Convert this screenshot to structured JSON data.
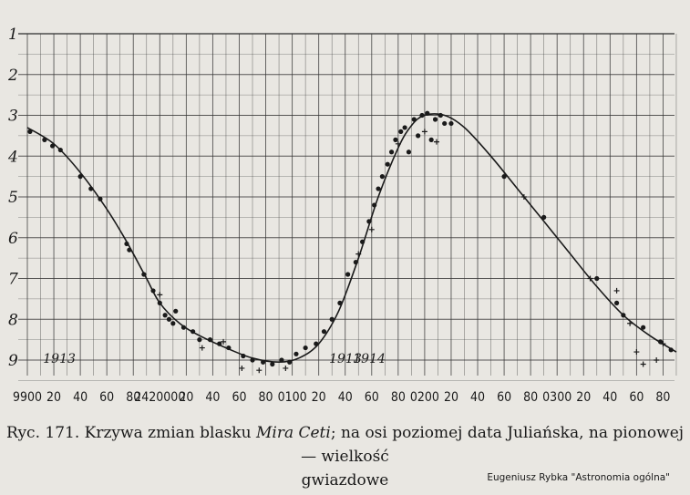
{
  "chart_data": {
    "type": "scatter",
    "title": "",
    "xlabel": "",
    "ylabel": "",
    "x_ticks": [
      {
        "label": "9900",
        "jd": 2419900
      },
      {
        "label": "20",
        "jd": 2419920
      },
      {
        "label": "40",
        "jd": 2419940
      },
      {
        "label": "60",
        "jd": 2419960
      },
      {
        "label": "80",
        "jd": 2419980
      },
      {
        "label": "2420000",
        "jd": 2420000
      },
      {
        "label": "20",
        "jd": 2420020
      },
      {
        "label": "40",
        "jd": 2420040
      },
      {
        "label": "60",
        "jd": 2420060
      },
      {
        "label": "80",
        "jd": 2420080
      },
      {
        "label": "0100",
        "jd": 2420100
      },
      {
        "label": "20",
        "jd": 2420120
      },
      {
        "label": "40",
        "jd": 2420140
      },
      {
        "label": "60",
        "jd": 2420160
      },
      {
        "label": "80",
        "jd": 2420180
      },
      {
        "label": "0200",
        "jd": 2420200
      },
      {
        "label": "20",
        "jd": 2420220
      },
      {
        "label": "40",
        "jd": 2420240
      },
      {
        "label": "60",
        "jd": 2420260
      },
      {
        "label": "80",
        "jd": 2420280
      },
      {
        "label": "0300",
        "jd": 2420300
      },
      {
        "label": "20",
        "jd": 2420320
      },
      {
        "label": "40",
        "jd": 2420340
      },
      {
        "label": "60",
        "jd": 2420360
      },
      {
        "label": "80",
        "jd": 2420380
      }
    ],
    "y_ticks": [
      "1",
      "2",
      "3",
      "4",
      "5",
      "6",
      "7",
      "8",
      "9"
    ],
    "xlim": [
      2419900,
      2420390
    ],
    "ylim": [
      1,
      9.5
    ],
    "y_inverted": true,
    "grid": true,
    "year_labels": [
      {
        "text": "1913",
        "jd": 2419905
      },
      {
        "text": "1913",
        "jd": 2420121
      },
      {
        "text": "1914",
        "jd": 2420139
      }
    ],
    "curve": [
      {
        "x": 2419900,
        "y": 3.3
      },
      {
        "x": 2419920,
        "y": 3.7
      },
      {
        "x": 2419940,
        "y": 4.4
      },
      {
        "x": 2419960,
        "y": 5.3
      },
      {
        "x": 2419975,
        "y": 6.1
      },
      {
        "x": 2419990,
        "y": 7.0
      },
      {
        "x": 2420000,
        "y": 7.6
      },
      {
        "x": 2420015,
        "y": 8.1
      },
      {
        "x": 2420030,
        "y": 8.4
      },
      {
        "x": 2420050,
        "y": 8.7
      },
      {
        "x": 2420070,
        "y": 8.95
      },
      {
        "x": 2420090,
        "y": 9.05
      },
      {
        "x": 2420105,
        "y": 8.95
      },
      {
        "x": 2420120,
        "y": 8.6
      },
      {
        "x": 2420135,
        "y": 7.8
      },
      {
        "x": 2420150,
        "y": 6.5
      },
      {
        "x": 2420165,
        "y": 5.0
      },
      {
        "x": 2420180,
        "y": 3.8
      },
      {
        "x": 2420190,
        "y": 3.25
      },
      {
        "x": 2420200,
        "y": 3.0
      },
      {
        "x": 2420215,
        "y": 3.0
      },
      {
        "x": 2420230,
        "y": 3.3
      },
      {
        "x": 2420250,
        "y": 4.0
      },
      {
        "x": 2420270,
        "y": 4.8
      },
      {
        "x": 2420290,
        "y": 5.6
      },
      {
        "x": 2420310,
        "y": 6.4
      },
      {
        "x": 2420330,
        "y": 7.2
      },
      {
        "x": 2420350,
        "y": 7.9
      },
      {
        "x": 2420370,
        "y": 8.4
      },
      {
        "x": 2420390,
        "y": 8.8
      }
    ],
    "points": [
      {
        "x": 2419902,
        "y": 3.4
      },
      {
        "x": 2419913,
        "y": 3.6
      },
      {
        "x": 2419919,
        "y": 3.75
      },
      {
        "x": 2419925,
        "y": 3.85
      },
      {
        "x": 2419940,
        "y": 4.5
      },
      {
        "x": 2419948,
        "y": 4.8
      },
      {
        "x": 2419955,
        "y": 5.05
      },
      {
        "x": 2419975,
        "y": 6.15
      },
      {
        "x": 2419977,
        "y": 6.3
      },
      {
        "x": 2419988,
        "y": 6.9
      },
      {
        "x": 2419995,
        "y": 7.3
      },
      {
        "x": 2420000,
        "y": 7.6
      },
      {
        "x": 2420004,
        "y": 7.9
      },
      {
        "x": 2420007,
        "y": 8.0
      },
      {
        "x": 2420010,
        "y": 8.1
      },
      {
        "x": 2420012,
        "y": 7.8
      },
      {
        "x": 2420018,
        "y": 8.2
      },
      {
        "x": 2420025,
        "y": 8.3
      },
      {
        "x": 2420030,
        "y": 8.5
      },
      {
        "x": 2420038,
        "y": 8.5
      },
      {
        "x": 2420045,
        "y": 8.6
      },
      {
        "x": 2420052,
        "y": 8.7
      },
      {
        "x": 2420063,
        "y": 8.9
      },
      {
        "x": 2420070,
        "y": 9.0
      },
      {
        "x": 2420078,
        "y": 9.05
      },
      {
        "x": 2420085,
        "y": 9.1
      },
      {
        "x": 2420092,
        "y": 9.0
      },
      {
        "x": 2420098,
        "y": 9.05
      },
      {
        "x": 2420103,
        "y": 8.85
      },
      {
        "x": 2420110,
        "y": 8.7
      },
      {
        "x": 2420118,
        "y": 8.6
      },
      {
        "x": 2420124,
        "y": 8.3
      },
      {
        "x": 2420130,
        "y": 8.0
      },
      {
        "x": 2420136,
        "y": 7.6
      },
      {
        "x": 2420142,
        "y": 6.9
      },
      {
        "x": 2420148,
        "y": 6.6
      },
      {
        "x": 2420153,
        "y": 6.1
      },
      {
        "x": 2420158,
        "y": 5.6
      },
      {
        "x": 2420162,
        "y": 5.2
      },
      {
        "x": 2420165,
        "y": 4.8
      },
      {
        "x": 2420168,
        "y": 4.5
      },
      {
        "x": 2420172,
        "y": 4.2
      },
      {
        "x": 2420175,
        "y": 3.9
      },
      {
        "x": 2420178,
        "y": 3.6
      },
      {
        "x": 2420182,
        "y": 3.4
      },
      {
        "x": 2420185,
        "y": 3.3
      },
      {
        "x": 2420188,
        "y": 3.9
      },
      {
        "x": 2420192,
        "y": 3.1
      },
      {
        "x": 2420195,
        "y": 3.5
      },
      {
        "x": 2420198,
        "y": 3.0
      },
      {
        "x": 2420202,
        "y": 2.95
      },
      {
        "x": 2420205,
        "y": 3.6
      },
      {
        "x": 2420208,
        "y": 3.1
      },
      {
        "x": 2420212,
        "y": 3.0
      },
      {
        "x": 2420215,
        "y": 3.2
      },
      {
        "x": 2420220,
        "y": 3.2
      },
      {
        "x": 2420260,
        "y": 4.5
      },
      {
        "x": 2420290,
        "y": 5.5
      },
      {
        "x": 2420330,
        "y": 7.0
      },
      {
        "x": 2420345,
        "y": 7.6
      },
      {
        "x": 2420350,
        "y": 7.9
      },
      {
        "x": 2420365,
        "y": 8.2
      },
      {
        "x": 2420378,
        "y": 8.55
      },
      {
        "x": 2420386,
        "y": 8.75
      }
    ],
    "plus_points": [
      {
        "x": 2420000,
        "y": 7.4
      },
      {
        "x": 2420032,
        "y": 8.7
      },
      {
        "x": 2420048,
        "y": 8.55
      },
      {
        "x": 2420062,
        "y": 9.2
      },
      {
        "x": 2420075,
        "y": 9.25
      },
      {
        "x": 2420095,
        "y": 9.2
      },
      {
        "x": 2420150,
        "y": 6.4
      },
      {
        "x": 2420160,
        "y": 5.8
      },
      {
        "x": 2420180,
        "y": 3.7
      },
      {
        "x": 2420200,
        "y": 3.4
      },
      {
        "x": 2420209,
        "y": 3.65
      },
      {
        "x": 2420275,
        "y": 5.0
      },
      {
        "x": 2420325,
        "y": 7.0
      },
      {
        "x": 2420345,
        "y": 7.3
      },
      {
        "x": 2420355,
        "y": 8.1
      },
      {
        "x": 2420360,
        "y": 8.8
      },
      {
        "x": 2420365,
        "y": 9.1
      },
      {
        "x": 2420375,
        "y": 9.0
      },
      {
        "x": 2420380,
        "y": 8.6
      }
    ]
  },
  "caption": {
    "prefix": "Ryc. 171. Krzywa zmian blasku ",
    "star": "Mira Ceti",
    "suffix": "; na osi poziomej data Juliańska, na pionowej — wielkość",
    "line2": "gwiazdowe"
  },
  "credit": "Eugeniusz Rybka \"Astronomia ogólna\""
}
